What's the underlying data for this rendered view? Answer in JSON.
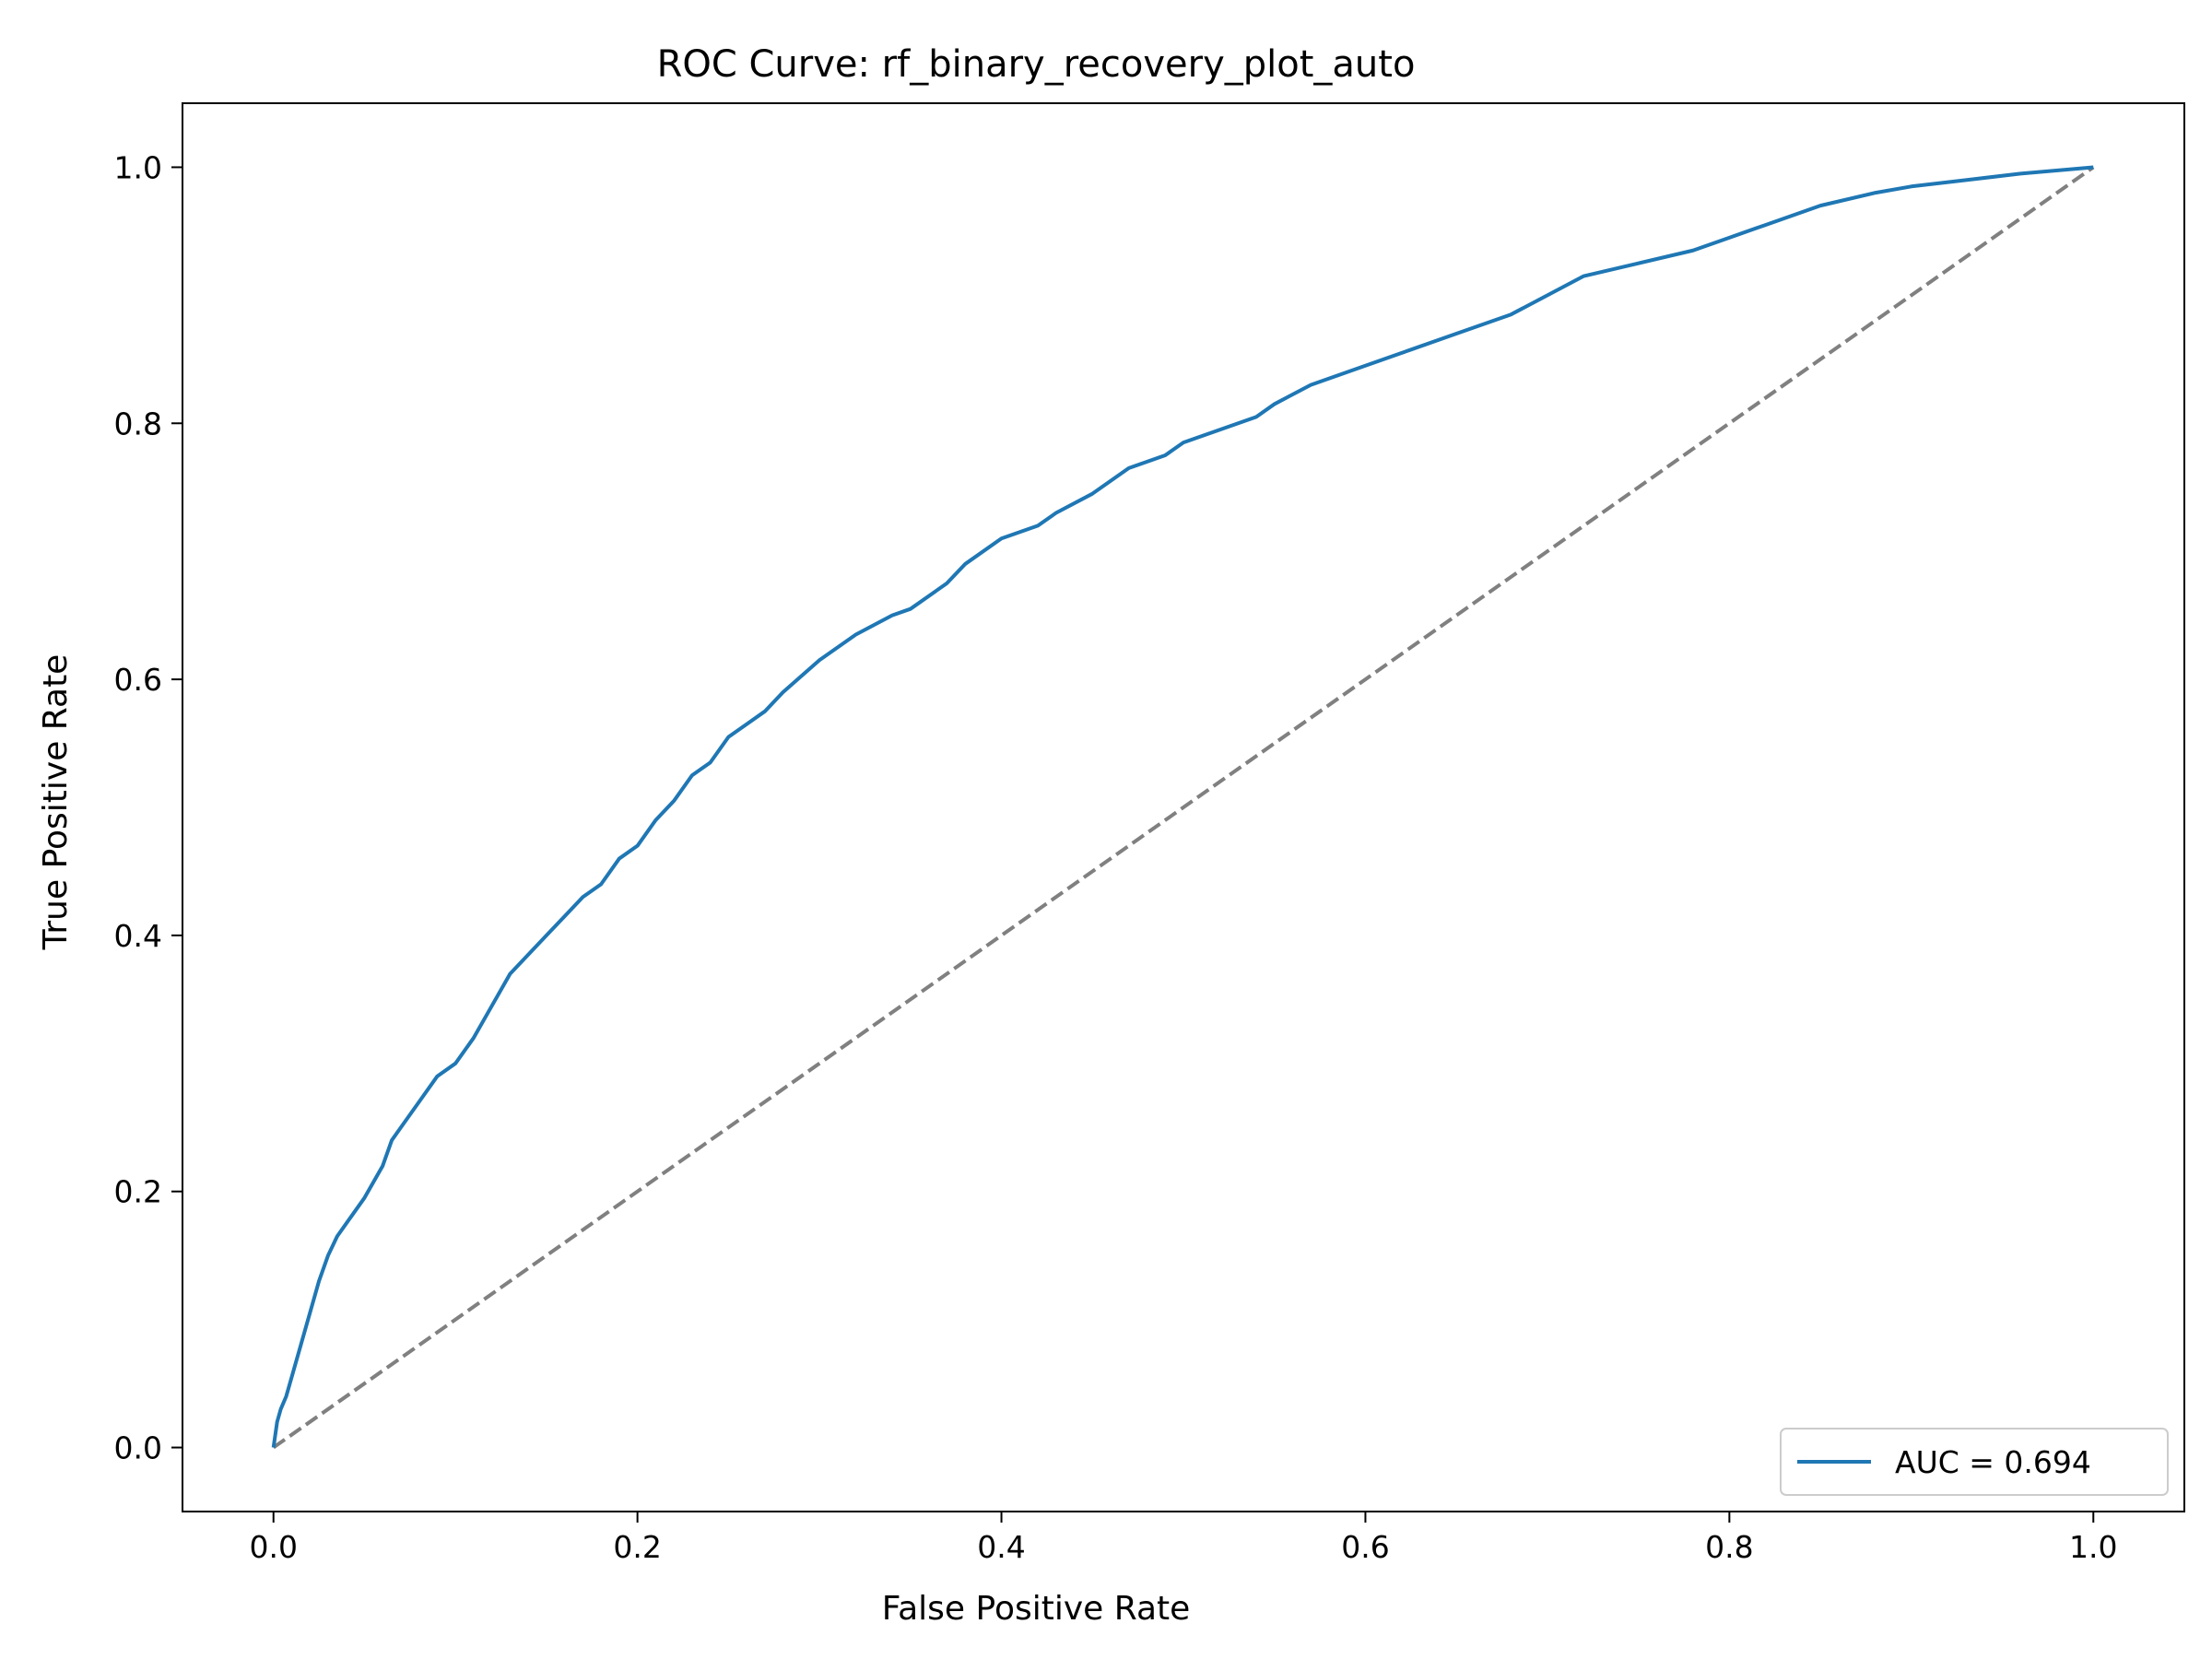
{
  "chart_data": {
    "type": "line",
    "title": "ROC Curve: rf_binary_recovery_plot_auto",
    "xlabel": "False Positive Rate",
    "ylabel": "True Positive Rate",
    "xlim": [
      -0.05,
      1.05
    ],
    "ylim": [
      -0.05,
      1.05
    ],
    "xticks": [
      0.0,
      0.2,
      0.4,
      0.6,
      0.8,
      1.0
    ],
    "yticks": [
      0.0,
      0.2,
      0.4,
      0.6,
      0.8,
      1.0
    ],
    "tick_labels_x": [
      "0.0",
      "0.2",
      "0.4",
      "0.6",
      "0.8",
      "1.0"
    ],
    "tick_labels_y": [
      "0.0",
      "0.2",
      "0.4",
      "0.6",
      "0.8",
      "1.0"
    ],
    "grid": false,
    "legend_position": "lower-right",
    "series": [
      {
        "name": "AUC = 0.694",
        "color": "#1f77b4",
        "style": "solid",
        "x": [
          0.0,
          0.002,
          0.004,
          0.007,
          0.01,
          0.015,
          0.02,
          0.025,
          0.03,
          0.035,
          0.04,
          0.045,
          0.05,
          0.06,
          0.065,
          0.07,
          0.075,
          0.08,
          0.09,
          0.1,
          0.11,
          0.12,
          0.13,
          0.14,
          0.15,
          0.16,
          0.17,
          0.18,
          0.19,
          0.2,
          0.21,
          0.22,
          0.23,
          0.24,
          0.25,
          0.26,
          0.27,
          0.28,
          0.3,
          0.32,
          0.34,
          0.35,
          0.37,
          0.38,
          0.4,
          0.42,
          0.43,
          0.45,
          0.47,
          0.49,
          0.5,
          0.52,
          0.54,
          0.55,
          0.57,
          0.6,
          0.62,
          0.65,
          0.68,
          0.7,
          0.72,
          0.75,
          0.78,
          0.8,
          0.82,
          0.85,
          0.88,
          0.9,
          0.93,
          0.96,
          1.0
        ],
        "y": [
          0.0,
          0.02,
          0.03,
          0.04,
          0.055,
          0.08,
          0.105,
          0.13,
          0.15,
          0.165,
          0.175,
          0.185,
          0.195,
          0.22,
          0.24,
          0.25,
          0.26,
          0.27,
          0.29,
          0.3,
          0.32,
          0.345,
          0.37,
          0.385,
          0.4,
          0.415,
          0.43,
          0.44,
          0.46,
          0.47,
          0.49,
          0.505,
          0.525,
          0.535,
          0.555,
          0.565,
          0.575,
          0.59,
          0.615,
          0.635,
          0.65,
          0.655,
          0.675,
          0.69,
          0.71,
          0.72,
          0.73,
          0.745,
          0.765,
          0.775,
          0.785,
          0.795,
          0.805,
          0.815,
          0.83,
          0.845,
          0.855,
          0.87,
          0.885,
          0.9,
          0.915,
          0.925,
          0.935,
          0.945,
          0.955,
          0.97,
          0.98,
          0.985,
          0.99,
          0.995,
          1.0
        ]
      },
      {
        "name": "",
        "color": "#808080",
        "style": "dashed",
        "x": [
          0.0,
          1.0
        ],
        "y": [
          0.0,
          1.0
        ]
      }
    ]
  }
}
